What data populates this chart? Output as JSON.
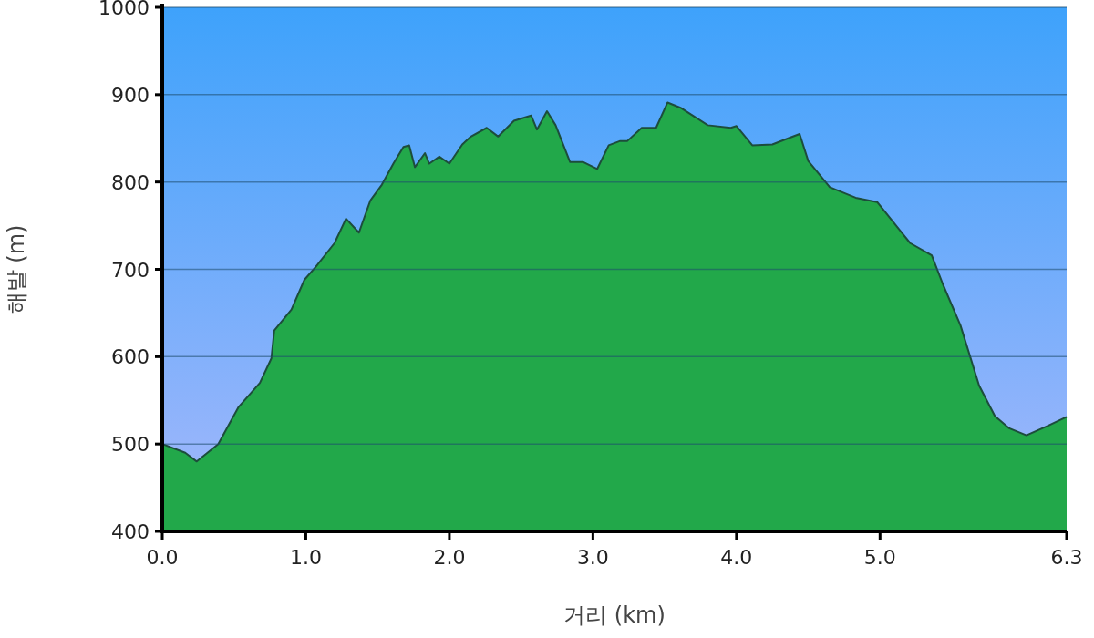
{
  "chart_data": {
    "type": "area",
    "xlabel": "거리 (km)",
    "ylabel": "해발 (m)",
    "x": [
      0,
      0.16,
      0.24,
      0.39,
      0.53,
      0.68,
      0.76,
      0.78,
      0.9,
      0.99,
      1.07,
      1.2,
      1.28,
      1.37,
      1.45,
      1.53,
      1.61,
      1.68,
      1.72,
      1.76,
      1.83,
      1.86,
      1.93,
      2.0,
      2.09,
      2.15,
      2.26,
      2.34,
      2.45,
      2.57,
      2.61,
      2.68,
      2.74,
      2.84,
      2.93,
      3.03,
      3.11,
      3.19,
      3.24,
      3.34,
      3.44,
      3.52,
      3.61,
      3.8,
      3.96,
      4.0,
      4.11,
      4.25,
      4.36,
      4.44,
      4.5,
      4.65,
      4.83,
      4.98,
      5.21,
      5.36,
      5.44,
      5.56,
      5.69,
      5.8,
      5.9,
      6.02,
      6.17,
      6.3
    ],
    "series": [
      {
        "color": "#22a84a",
        "values": [
          500,
          490,
          480,
          500,
          542,
          570,
          598,
          630,
          654,
          688,
          703,
          730,
          758,
          742,
          779,
          797,
          821,
          840,
          842,
          817,
          833,
          821,
          829,
          821,
          843,
          852,
          862,
          852,
          870,
          876,
          860,
          881,
          865,
          823,
          823,
          815,
          842,
          847,
          847,
          862,
          862,
          891,
          885,
          865,
          862,
          864,
          842,
          843,
          850,
          855,
          824,
          794,
          782,
          777,
          730,
          716,
          682,
          636,
          567,
          532,
          518,
          510,
          521,
          531
        ]
      }
    ],
    "xlim": [
      0,
      6.3
    ],
    "ylim": [
      400,
      1000
    ],
    "xticks": [
      {
        "value": 0,
        "label": "0.0"
      },
      {
        "value": 1,
        "label": "1.0"
      },
      {
        "value": 2,
        "label": "2.0"
      },
      {
        "value": 3,
        "label": "3.0"
      },
      {
        "value": 4,
        "label": "4.0"
      },
      {
        "value": 5,
        "label": "5.0"
      },
      6.3
    ],
    "yticks": [
      400,
      500,
      600,
      700,
      800,
      900,
      1000
    ],
    "grid": "y"
  }
}
